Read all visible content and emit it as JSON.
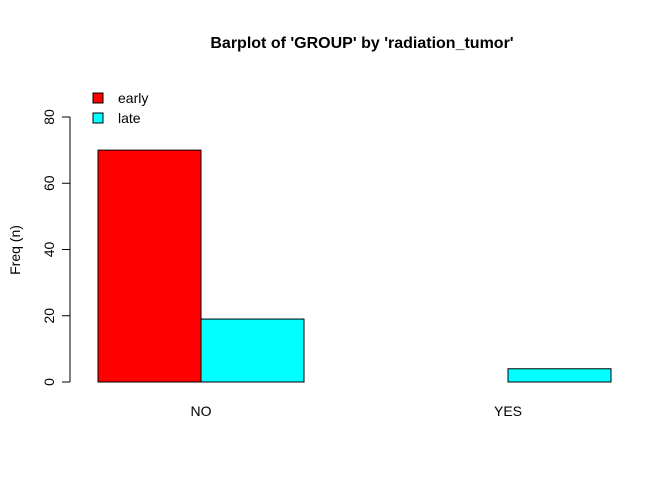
{
  "chart_data": {
    "type": "bar",
    "title": "Barplot of 'GROUP' by 'radiation_tumor'",
    "xlabel": "",
    "ylabel": "Freq (n)",
    "categories": [
      "NO",
      "YES"
    ],
    "series": [
      {
        "name": "early",
        "color": "#ff0000",
        "values": [
          70,
          0
        ]
      },
      {
        "name": "late",
        "color": "#00ffff",
        "values": [
          19,
          4
        ]
      }
    ],
    "ylim": [
      0,
      80
    ],
    "yticks": [
      0,
      20,
      40,
      60,
      80
    ],
    "legend_position": "top-left",
    "grid": false
  }
}
